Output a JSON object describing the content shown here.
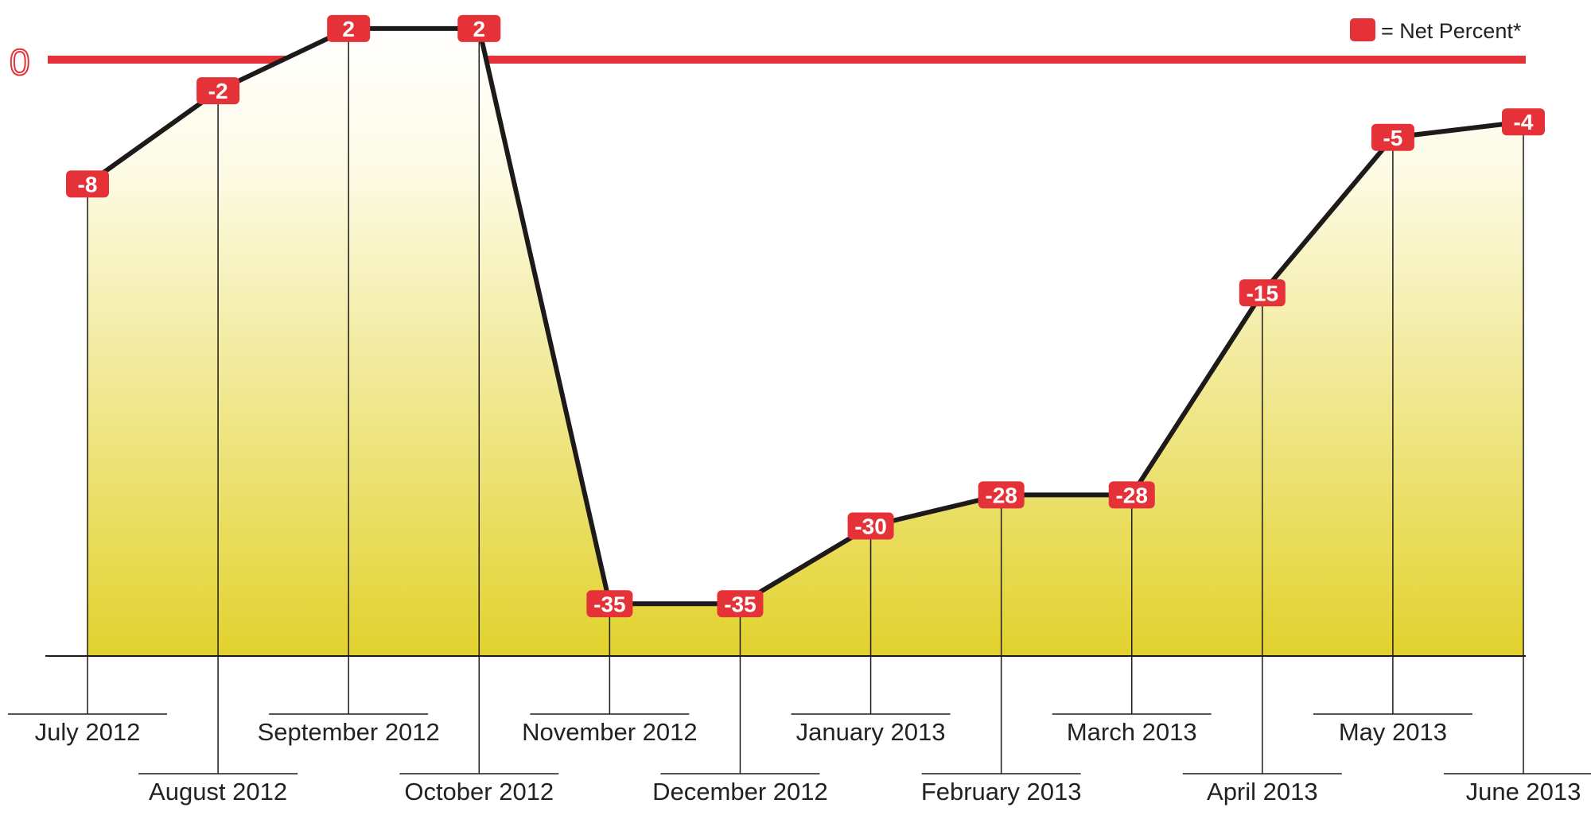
{
  "chart_data": {
    "type": "line",
    "categories": [
      "July 2012",
      "August 2012",
      "September 2012",
      "October 2012",
      "November 2012",
      "December 2012",
      "January 2013",
      "February 2013",
      "March 2013",
      "April 2013",
      "May 2013",
      "June 2013"
    ],
    "series": [
      {
        "values": [
          -8,
          -2,
          2,
          2,
          -35,
          -35,
          -30,
          -28,
          -28,
          -15,
          -5,
          -4
        ]
      }
    ],
    "data_labels": [
      "-8",
      "-2",
      "2",
      "2",
      "-35",
      "-35",
      "-30",
      "-28",
      "-28",
      "-15",
      "-5",
      "-4"
    ],
    "reference_line": {
      "value": 0,
      "label": "0"
    },
    "legend": {
      "label": "= Net Percent*",
      "color": "#e53238",
      "position": "top-right"
    },
    "ylim": [
      -39,
      5
    ],
    "grid": false,
    "colors": {
      "line": "#1e1a1a",
      "marker": "#e53238",
      "fill_top": "#fffff4",
      "fill_bottom": "#e2d22e",
      "axis": "#1e1a1a"
    }
  }
}
